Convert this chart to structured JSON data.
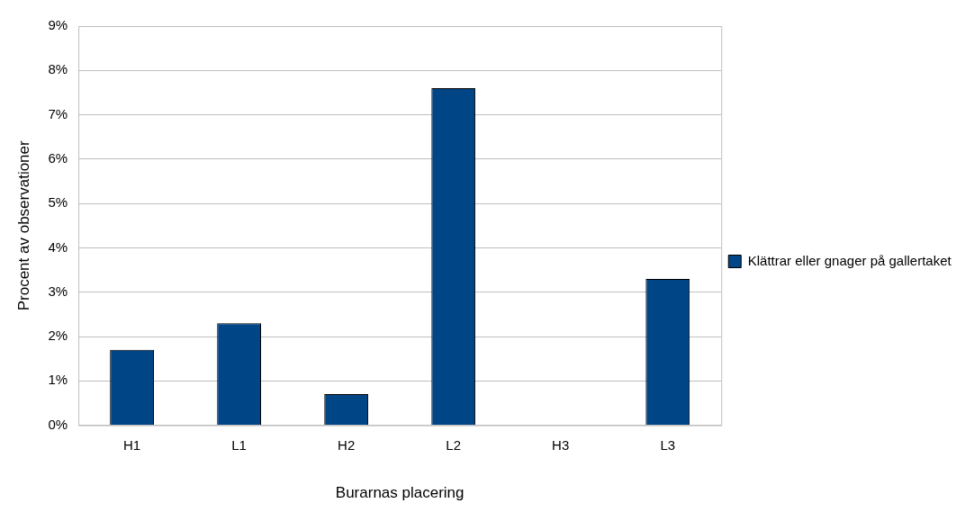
{
  "chart_data": {
    "type": "bar",
    "xlabel": "Burarnas placering",
    "ylabel": "Procent av observationer",
    "categories": [
      "H1",
      "L1",
      "H2",
      "L2",
      "H3",
      "L3"
    ],
    "series": [
      {
        "name": "Klättrar eller gnager på gallertaket",
        "color": "#004586",
        "values": [
          1.7,
          2.3,
          0.7,
          7.6,
          0,
          3.3
        ]
      }
    ],
    "ylim": [
      0,
      9
    ],
    "yticks": [
      {
        "value": 0,
        "label": "0%"
      },
      {
        "value": 1,
        "label": "1%"
      },
      {
        "value": 2,
        "label": "2%"
      },
      {
        "value": 3,
        "label": "3%"
      },
      {
        "value": 4,
        "label": "4%"
      },
      {
        "value": 5,
        "label": "5%"
      },
      {
        "value": 6,
        "label": "6%"
      },
      {
        "value": 7,
        "label": "7%"
      },
      {
        "value": 8,
        "label": "8%"
      },
      {
        "value": 9,
        "label": "9%"
      }
    ],
    "grid": "y",
    "legend": "right"
  }
}
